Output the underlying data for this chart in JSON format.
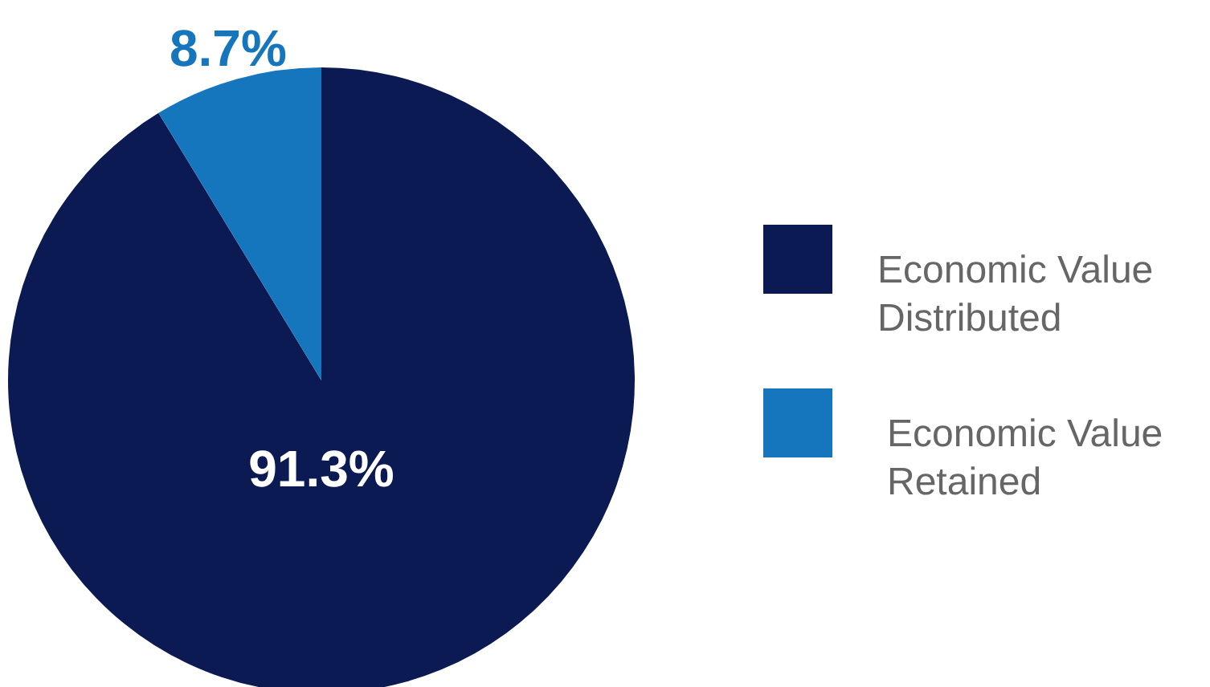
{
  "chart_data": {
    "type": "pie",
    "categories": [
      "Economic Value Distributed",
      "Economic Value Retained"
    ],
    "values": [
      91.3,
      8.7
    ],
    "colors": [
      "#0b1a52",
      "#1576be"
    ],
    "value_labels": [
      "91.3%",
      "8.7%"
    ],
    "legend": "right"
  }
}
